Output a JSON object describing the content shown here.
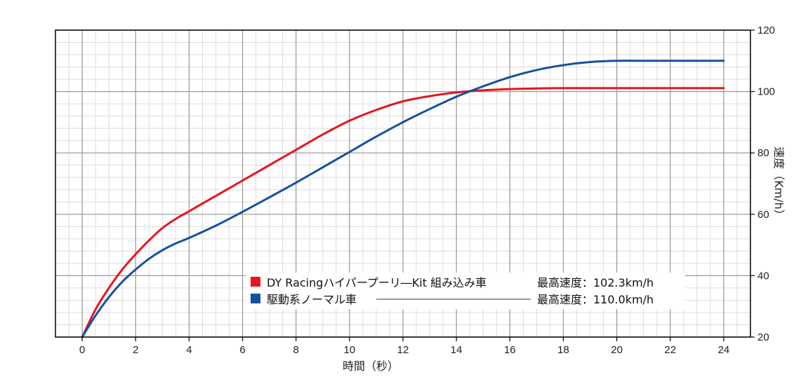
{
  "chart_data": {
    "type": "line",
    "xlabel": "時間（秒）",
    "ylabel": "速度（Km/h）",
    "xlim": [
      -1,
      25
    ],
    "ylim": [
      20,
      120
    ],
    "x_ticks": [
      0,
      2,
      4,
      6,
      8,
      10,
      12,
      14,
      16,
      18,
      20,
      22,
      24
    ],
    "y_ticks": [
      20,
      40,
      60,
      80,
      100,
      120
    ],
    "y_axis_side": "right",
    "grid": true,
    "legend_position": "lower-right",
    "series": [
      {
        "name": "DY Racingハイパープーリ―Kit 組み込み車",
        "note": "最高速度：102.3km/h",
        "color": "#e8141e",
        "x": [
          0,
          0.5,
          1,
          1.5,
          2,
          2.5,
          3,
          3.5,
          4,
          5,
          6,
          7,
          8,
          9,
          10,
          11,
          12,
          13,
          14,
          15,
          16,
          17,
          18,
          20,
          22,
          24
        ],
        "y": [
          20,
          29,
          36,
          42,
          47,
          51.5,
          55.5,
          58.5,
          61,
          66,
          71,
          76,
          81,
          86,
          90.5,
          94,
          96.8,
          98.5,
          99.7,
          100.4,
          100.8,
          101,
          101.1,
          101.1,
          101.1,
          101.1
        ]
      },
      {
        "name": "駆動系ノーマル車",
        "note": "最高速度：110.0km/h",
        "color": "#1550a0",
        "x": [
          0,
          0.5,
          1,
          1.5,
          2,
          2.5,
          3,
          3.5,
          4,
          5,
          6,
          7,
          8,
          9,
          10,
          11,
          12,
          13,
          14,
          15,
          16,
          17,
          18,
          19,
          20,
          21,
          22,
          24
        ],
        "y": [
          20,
          27,
          33,
          38,
          42,
          45.5,
          48.3,
          50.5,
          52.3,
          56.3,
          60.8,
          65.5,
          70.3,
          75.3,
          80.3,
          85.3,
          90,
          94.3,
          98.3,
          101.7,
          104.7,
          107,
          108.6,
          109.6,
          110,
          110,
          110,
          110
        ]
      }
    ]
  }
}
